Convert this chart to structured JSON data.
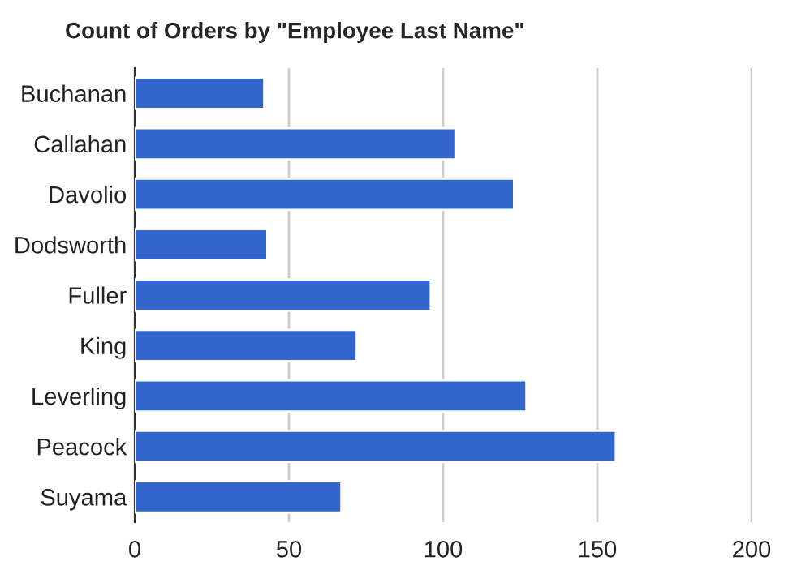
{
  "chart_data": {
    "type": "bar",
    "orientation": "horizontal",
    "title": "Count of Orders by \"Employee Last Name\"",
    "categories": [
      "Buchanan",
      "Callahan",
      "Davolio",
      "Dodsworth",
      "Fuller",
      "King",
      "Leverling",
      "Peacock",
      "Suyama"
    ],
    "values": [
      42,
      104,
      123,
      43,
      96,
      72,
      127,
      156,
      67
    ],
    "color": "#3366cc",
    "xlim": [
      0,
      200
    ],
    "xticks": [
      0,
      50,
      100,
      150,
      200
    ],
    "grid": "x",
    "legend": false
  }
}
